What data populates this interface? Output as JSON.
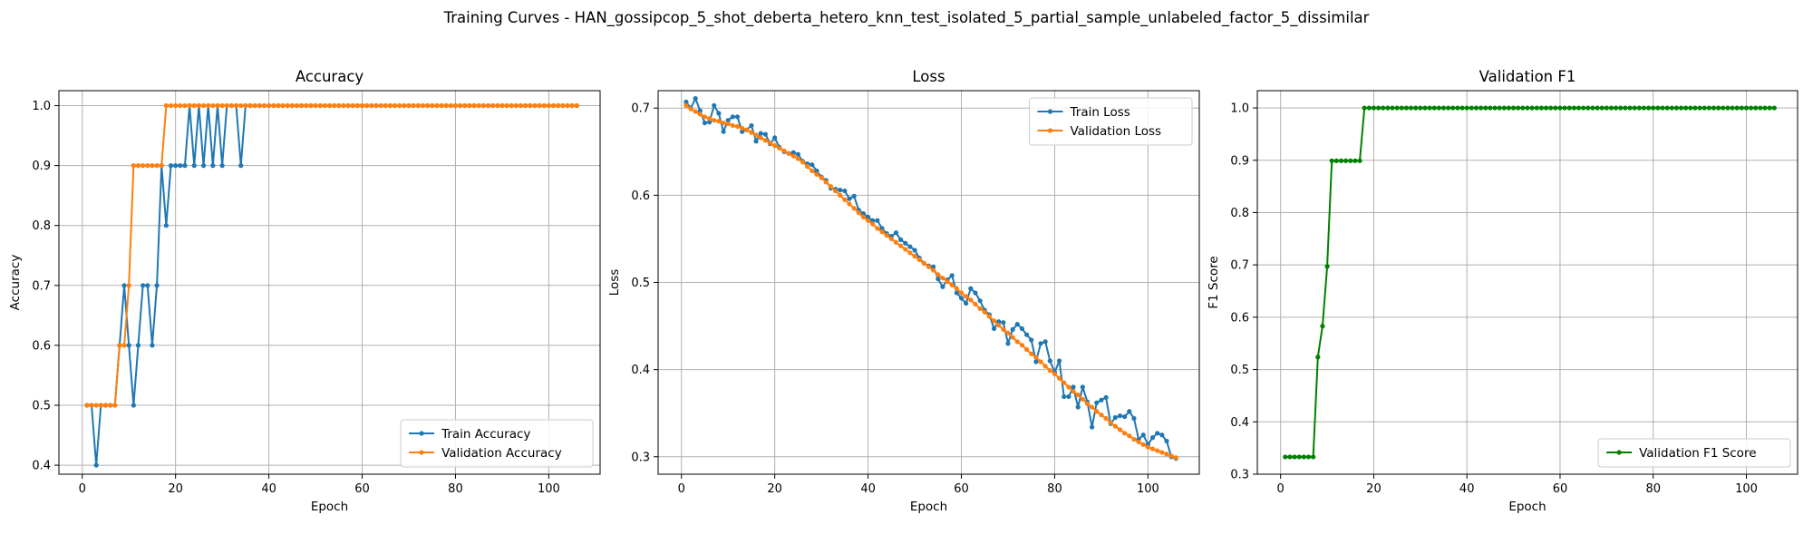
{
  "figure": {
    "suptitle": "Training Curves - HAN_gossipcop_5_shot_deberta_hetero_knn_test_isolated_5_partial_sample_unlabeled_factor_5_dissimilar"
  },
  "colors": {
    "blue": "#1f77b4",
    "orange": "#ff7f0e",
    "green": "#008000",
    "grid": "#b0b0b0"
  },
  "chart_data": [
    {
      "type": "line",
      "title": "Accuracy",
      "xlabel": "Epoch",
      "ylabel": "Accuracy",
      "xlim": [
        -5,
        111
      ],
      "ylim": [
        0.385,
        1.025
      ],
      "xticks": [
        0,
        20,
        40,
        60,
        80,
        100
      ],
      "yticks": [
        0.4,
        0.5,
        0.6,
        0.7,
        0.8,
        0.9,
        1.0
      ],
      "yticklabels": [
        "0.4",
        "0.5",
        "0.6",
        "0.7",
        "0.8",
        "0.9",
        "1.0"
      ],
      "grid": true,
      "legend": "lower-right",
      "x": {
        "start": 1,
        "end": 106
      },
      "series": [
        {
          "name": "Train Accuracy",
          "color": "#1f77b4",
          "values": [
            0.5,
            0.5,
            0.4,
            0.5,
            0.5,
            0.5,
            0.5,
            0.6,
            0.7,
            0.6,
            0.5,
            0.6,
            0.7,
            0.7,
            0.6,
            0.7,
            0.9,
            0.8,
            0.9,
            0.9,
            0.9,
            0.9,
            1.0,
            0.9,
            1.0,
            0.9,
            1.0,
            0.9,
            1.0,
            0.9,
            1.0,
            1.0,
            1.0,
            0.9,
            1.0
          ],
          "tail": 1.0
        },
        {
          "name": "Validation Accuracy",
          "color": "#ff7f0e",
          "values": [
            0.5,
            0.5,
            0.5,
            0.5,
            0.5,
            0.5,
            0.5,
            0.6,
            0.6,
            0.7,
            0.9,
            0.9,
            0.9,
            0.9,
            0.9,
            0.9,
            0.9,
            1.0
          ],
          "tail": 1.0
        }
      ]
    },
    {
      "type": "line",
      "title": "Loss",
      "xlabel": "Epoch",
      "ylabel": "Loss",
      "xlim": [
        -5,
        111
      ],
      "ylim": [
        0.28,
        0.72
      ],
      "xticks": [
        0,
        20,
        40,
        60,
        80,
        100
      ],
      "yticks": [
        0.3,
        0.4,
        0.5,
        0.6,
        0.7
      ],
      "yticklabels": [
        "0.3",
        "0.4",
        "0.5",
        "0.6",
        "0.7"
      ],
      "grid": true,
      "legend": "upper-right",
      "x": {
        "start": 1,
        "end": 106
      },
      "series": [
        {
          "name": "Train Loss",
          "color": "#1f77b4",
          "values": [
            0.707,
            0.7,
            0.711,
            0.697,
            0.683,
            0.684,
            0.703,
            0.694,
            0.673,
            0.686,
            0.69,
            0.69,
            0.673,
            0.675,
            0.68,
            0.662,
            0.671,
            0.67,
            0.659,
            0.666,
            0.655,
            0.65,
            0.648,
            0.649,
            0.647,
            0.639,
            0.636,
            0.635,
            0.628,
            0.621,
            0.617,
            0.608,
            0.607,
            0.606,
            0.605,
            0.596,
            0.599,
            0.583,
            0.579,
            0.575,
            0.571,
            0.571,
            0.562,
            0.556,
            0.553,
            0.557,
            0.549,
            0.545,
            0.541,
            0.537,
            0.528,
            0.522,
            0.519,
            0.518,
            0.504,
            0.495,
            0.503,
            0.508,
            0.488,
            0.482,
            0.476,
            0.493,
            0.488,
            0.479,
            0.468,
            0.463,
            0.447,
            0.455,
            0.454,
            0.43,
            0.446,
            0.452,
            0.447,
            0.44,
            0.434,
            0.409,
            0.43,
            0.432,
            0.41,
            0.397,
            0.41,
            0.369,
            0.369,
            0.38,
            0.357,
            0.38,
            0.363,
            0.334,
            0.362,
            0.365,
            0.368,
            0.338,
            0.345,
            0.347,
            0.346,
            0.352,
            0.344,
            0.32,
            0.325,
            0.314,
            0.322,
            0.327,
            0.325,
            0.318,
            0.3,
            0.298
          ]
        },
        {
          "name": "Validation Loss",
          "color": "#ff7f0e",
          "values": [
            0.703,
            0.699,
            0.696,
            0.693,
            0.69,
            0.688,
            0.686,
            0.685,
            0.683,
            0.682,
            0.68,
            0.679,
            0.677,
            0.675,
            0.672,
            0.669,
            0.666,
            0.663,
            0.66,
            0.657,
            0.654,
            0.651,
            0.648,
            0.645,
            0.642,
            0.638,
            0.633,
            0.628,
            0.624,
            0.62,
            0.615,
            0.61,
            0.605,
            0.6,
            0.595,
            0.59,
            0.585,
            0.58,
            0.575,
            0.571,
            0.567,
            0.562,
            0.558,
            0.554,
            0.55,
            0.546,
            0.542,
            0.538,
            0.534,
            0.53,
            0.526,
            0.522,
            0.518,
            0.514,
            0.509,
            0.505,
            0.501,
            0.497,
            0.493,
            0.488,
            0.484,
            0.48,
            0.475,
            0.47,
            0.466,
            0.461,
            0.456,
            0.451,
            0.446,
            0.442,
            0.437,
            0.432,
            0.428,
            0.423,
            0.418,
            0.414,
            0.409,
            0.404,
            0.399,
            0.395,
            0.39,
            0.385,
            0.38,
            0.375,
            0.371,
            0.366,
            0.361,
            0.357,
            0.352,
            0.348,
            0.344,
            0.339,
            0.335,
            0.331,
            0.327,
            0.324,
            0.32,
            0.317,
            0.314,
            0.311,
            0.309,
            0.307,
            0.305,
            0.303,
            0.301,
            0.299
          ]
        }
      ]
    },
    {
      "type": "line",
      "title": "Validation F1",
      "xlabel": "Epoch",
      "ylabel": "F1 Score",
      "xlim": [
        -5,
        111
      ],
      "ylim": [
        0.3,
        1.033
      ],
      "xticks": [
        0,
        20,
        40,
        60,
        80,
        100
      ],
      "yticks": [
        0.3,
        0.4,
        0.5,
        0.6,
        0.7,
        0.8,
        0.9,
        1.0
      ],
      "yticklabels": [
        "0.3",
        "0.4",
        "0.5",
        "0.6",
        "0.7",
        "0.8",
        "0.9",
        "1.0"
      ],
      "grid": true,
      "legend": "lower-right",
      "x": {
        "start": 1,
        "end": 106
      },
      "series": [
        {
          "name": "Validation F1 Score",
          "color": "#008000",
          "values": [
            0.333,
            0.333,
            0.333,
            0.333,
            0.333,
            0.333,
            0.333,
            0.524,
            0.583,
            0.697,
            0.899,
            0.899,
            0.899,
            0.899,
            0.899,
            0.899,
            0.899,
            1.0
          ],
          "tail": 1.0
        }
      ]
    }
  ]
}
